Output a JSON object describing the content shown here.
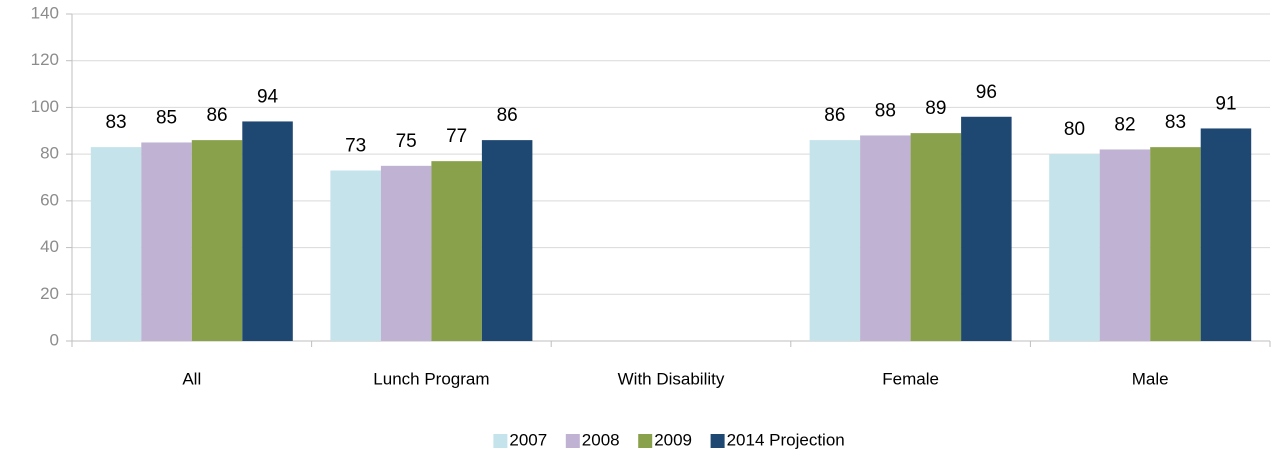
{
  "chart_data": {
    "type": "bar",
    "categories": [
      "All",
      "Lunch Program",
      "With Disability",
      "Female",
      "Male"
    ],
    "series": [
      {
        "name": "2007",
        "color": "#c5e3eb",
        "values": [
          83,
          73,
          null,
          86,
          80
        ]
      },
      {
        "name": "2008",
        "color": "#bfb2d3",
        "values": [
          85,
          75,
          null,
          88,
          82
        ]
      },
      {
        "name": "2009",
        "color": "#8aa14c",
        "values": [
          86,
          77,
          null,
          89,
          83
        ]
      },
      {
        "name": "2014 Projection",
        "color": "#1e4771",
        "values": [
          94,
          86,
          null,
          96,
          91
        ]
      }
    ],
    "ylim": [
      0,
      140
    ],
    "yticks": [
      0,
      20,
      40,
      60,
      80,
      100,
      120,
      140
    ],
    "grid": true,
    "legend": "bottom"
  }
}
